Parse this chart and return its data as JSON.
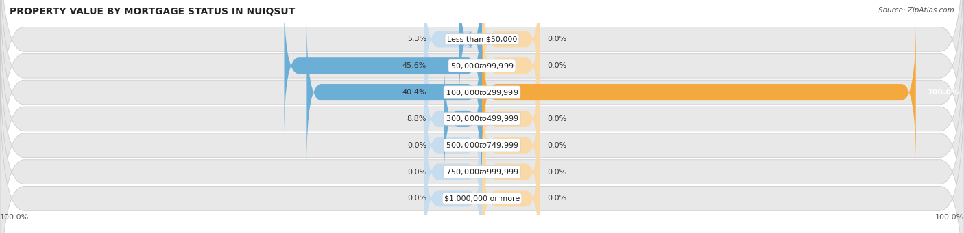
{
  "title": "PROPERTY VALUE BY MORTGAGE STATUS IN NUIQSUT",
  "source": "Source: ZipAtlas.com",
  "categories": [
    "Less than $50,000",
    "$50,000 to $99,999",
    "$100,000 to $299,999",
    "$300,000 to $499,999",
    "$500,000 to $749,999",
    "$750,000 to $999,999",
    "$1,000,000 or more"
  ],
  "without_mortgage": [
    5.3,
    45.6,
    40.4,
    8.8,
    0.0,
    0.0,
    0.0
  ],
  "with_mortgage": [
    0.0,
    0.0,
    100.0,
    0.0,
    0.0,
    0.0,
    0.0
  ],
  "without_mortgage_color": "#6baed6",
  "with_mortgage_color": "#f4a93e",
  "bar_bg_without": "#c6dcef",
  "bar_bg_with": "#fad9a8",
  "row_bg_color": "#e8e8e8",
  "row_border_color": "#cccccc",
  "title_fontsize": 10,
  "label_fontsize": 8,
  "category_fontsize": 8,
  "figsize": [
    14.06,
    3.41
  ],
  "dpi": 100,
  "bg_stub_pct": 12
}
